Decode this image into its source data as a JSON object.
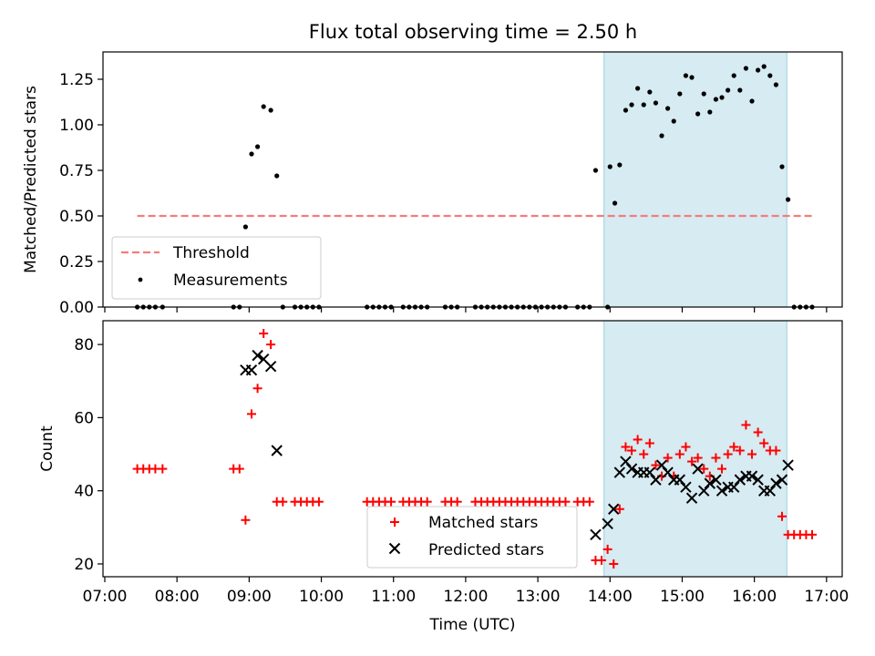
{
  "title": "Flux total observing time = 2.50 h",
  "chart_data": [
    {
      "type": "scatter",
      "panel": "top",
      "ylabel": "Matched/Predicted stars",
      "ylim": [
        0,
        1.4
      ],
      "yticks": [
        "0.00",
        "0.25",
        "0.50",
        "0.75",
        "1.00",
        "1.25"
      ],
      "xlim": [
        "07:00",
        "17:00"
      ],
      "shaded_range": [
        "13:55",
        "16:27"
      ],
      "threshold": {
        "name": "Threshold",
        "value": 0.5,
        "x": [
          "07:27",
          "16:48"
        ],
        "color": "#f47c7c"
      },
      "series": [
        {
          "name": "Measurements",
          "color": "#000000",
          "points": [
            [
              "07:27",
              0
            ],
            [
              "07:32",
              0
            ],
            [
              "07:37",
              0
            ],
            [
              "07:42",
              0
            ],
            [
              "07:48",
              0
            ],
            [
              "08:47",
              0
            ],
            [
              "08:52",
              0
            ],
            [
              "08:57",
              0.44
            ],
            [
              "09:02",
              0.84
            ],
            [
              "09:07",
              0.88
            ],
            [
              "09:12",
              1.1
            ],
            [
              "09:18",
              1.08
            ],
            [
              "09:23",
              0.72
            ],
            [
              "09:28",
              0
            ],
            [
              "09:38",
              0
            ],
            [
              "09:43",
              0
            ],
            [
              "09:48",
              0
            ],
            [
              "09:53",
              0
            ],
            [
              "09:58",
              0
            ],
            [
              "10:38",
              0
            ],
            [
              "10:43",
              0
            ],
            [
              "10:48",
              0
            ],
            [
              "10:53",
              0
            ],
            [
              "10:58",
              0
            ],
            [
              "11:08",
              0
            ],
            [
              "11:13",
              0
            ],
            [
              "11:18",
              0
            ],
            [
              "11:23",
              0
            ],
            [
              "11:28",
              0
            ],
            [
              "11:43",
              0
            ],
            [
              "11:48",
              0
            ],
            [
              "11:53",
              0
            ],
            [
              "12:08",
              0
            ],
            [
              "12:13",
              0
            ],
            [
              "12:18",
              0
            ],
            [
              "12:23",
              0
            ],
            [
              "12:28",
              0
            ],
            [
              "12:33",
              0
            ],
            [
              "12:38",
              0
            ],
            [
              "12:43",
              0
            ],
            [
              "12:48",
              0
            ],
            [
              "12:53",
              0
            ],
            [
              "12:58",
              0
            ],
            [
              "13:03",
              0
            ],
            [
              "13:08",
              0
            ],
            [
              "13:13",
              0
            ],
            [
              "13:18",
              0
            ],
            [
              "13:23",
              0
            ],
            [
              "13:33",
              0
            ],
            [
              "13:38",
              0
            ],
            [
              "13:43",
              0
            ],
            [
              "13:48",
              0.75
            ],
            [
              "13:58",
              0
            ],
            [
              "14:00",
              0.77
            ],
            [
              "14:04",
              0.57
            ],
            [
              "14:08",
              0.78
            ],
            [
              "14:13",
              1.08
            ],
            [
              "14:18",
              1.11
            ],
            [
              "14:23",
              1.2
            ],
            [
              "14:28",
              1.11
            ],
            [
              "14:33",
              1.18
            ],
            [
              "14:38",
              1.12
            ],
            [
              "14:43",
              0.94
            ],
            [
              "14:48",
              1.09
            ],
            [
              "14:53",
              1.02
            ],
            [
              "14:58",
              1.17
            ],
            [
              "15:03",
              1.27
            ],
            [
              "15:08",
              1.26
            ],
            [
              "15:13",
              1.06
            ],
            [
              "15:18",
              1.17
            ],
            [
              "15:23",
              1.07
            ],
            [
              "15:28",
              1.14
            ],
            [
              "15:33",
              1.15
            ],
            [
              "15:38",
              1.19
            ],
            [
              "15:43",
              1.27
            ],
            [
              "15:48",
              1.19
            ],
            [
              "15:53",
              1.31
            ],
            [
              "15:58",
              1.13
            ],
            [
              "16:03",
              1.3
            ],
            [
              "16:08",
              1.32
            ],
            [
              "16:13",
              1.27
            ],
            [
              "16:18",
              1.22
            ],
            [
              "16:23",
              0.77
            ],
            [
              "16:28",
              0.59
            ],
            [
              "16:33",
              0
            ],
            [
              "16:38",
              0
            ],
            [
              "16:43",
              0
            ],
            [
              "16:48",
              0
            ]
          ]
        }
      ],
      "legend": "lower-left"
    },
    {
      "type": "scatter",
      "panel": "bottom",
      "ylabel": "Count",
      "xlabel": "Time (UTC)",
      "ylim": [
        16.5,
        86.5
      ],
      "yticks": [
        "20",
        "40",
        "60",
        "80"
      ],
      "xlim": [
        "07:00",
        "17:00"
      ],
      "xticks": [
        "07:00",
        "08:00",
        "09:00",
        "10:00",
        "11:00",
        "12:00",
        "13:00",
        "14:00",
        "15:00",
        "16:00",
        "17:00"
      ],
      "shaded_range": [
        "13:55",
        "16:27"
      ],
      "series": [
        {
          "name": "Matched stars",
          "marker": "plus",
          "color": "#ff0000",
          "points": [
            [
              "07:27",
              46
            ],
            [
              "07:32",
              46
            ],
            [
              "07:37",
              46
            ],
            [
              "07:42",
              46
            ],
            [
              "07:48",
              46
            ],
            [
              "08:47",
              46
            ],
            [
              "08:52",
              46
            ],
            [
              "08:57",
              32
            ],
            [
              "09:02",
              61
            ],
            [
              "09:07",
              68
            ],
            [
              "09:12",
              83
            ],
            [
              "09:18",
              80
            ],
            [
              "09:23",
              37
            ],
            [
              "09:28",
              37
            ],
            [
              "09:38",
              37
            ],
            [
              "09:43",
              37
            ],
            [
              "09:48",
              37
            ],
            [
              "09:53",
              37
            ],
            [
              "09:58",
              37
            ],
            [
              "10:38",
              37
            ],
            [
              "10:43",
              37
            ],
            [
              "10:48",
              37
            ],
            [
              "10:53",
              37
            ],
            [
              "10:58",
              37
            ],
            [
              "11:08",
              37
            ],
            [
              "11:13",
              37
            ],
            [
              "11:18",
              37
            ],
            [
              "11:23",
              37
            ],
            [
              "11:28",
              37
            ],
            [
              "11:43",
              37
            ],
            [
              "11:48",
              37
            ],
            [
              "11:53",
              37
            ],
            [
              "12:08",
              37
            ],
            [
              "12:13",
              37
            ],
            [
              "12:18",
              37
            ],
            [
              "12:23",
              37
            ],
            [
              "12:28",
              37
            ],
            [
              "12:33",
              37
            ],
            [
              "12:38",
              37
            ],
            [
              "12:43",
              37
            ],
            [
              "12:48",
              37
            ],
            [
              "12:53",
              37
            ],
            [
              "12:58",
              37
            ],
            [
              "13:03",
              37
            ],
            [
              "13:08",
              37
            ],
            [
              "13:13",
              37
            ],
            [
              "13:18",
              37
            ],
            [
              "13:23",
              37
            ],
            [
              "13:33",
              37
            ],
            [
              "13:38",
              37
            ],
            [
              "13:43",
              37
            ],
            [
              "13:48",
              21
            ],
            [
              "13:53",
              21
            ],
            [
              "13:58",
              24
            ],
            [
              "14:03",
              20
            ],
            [
              "14:08",
              35
            ],
            [
              "14:13",
              52
            ],
            [
              "14:18",
              51
            ],
            [
              "14:23",
              54
            ],
            [
              "14:28",
              50
            ],
            [
              "14:33",
              53
            ],
            [
              "14:38",
              47
            ],
            [
              "14:43",
              44
            ],
            [
              "14:48",
              49
            ],
            [
              "14:53",
              44
            ],
            [
              "14:58",
              50
            ],
            [
              "15:03",
              52
            ],
            [
              "15:08",
              48
            ],
            [
              "15:13",
              49
            ],
            [
              "15:18",
              46
            ],
            [
              "15:23",
              44
            ],
            [
              "15:28",
              49
            ],
            [
              "15:33",
              46
            ],
            [
              "15:38",
              50
            ],
            [
              "15:43",
              52
            ],
            [
              "15:48",
              51
            ],
            [
              "15:53",
              58
            ],
            [
              "15:58",
              50
            ],
            [
              "16:03",
              56
            ],
            [
              "16:08",
              53
            ],
            [
              "16:13",
              51
            ],
            [
              "16:18",
              51
            ],
            [
              "16:23",
              33
            ],
            [
              "16:28",
              28
            ],
            [
              "16:33",
              28
            ],
            [
              "16:38",
              28
            ],
            [
              "16:43",
              28
            ],
            [
              "16:48",
              28
            ]
          ]
        },
        {
          "name": "Predicted stars",
          "marker": "x",
          "color": "#000000",
          "points": [
            [
              "08:57",
              73
            ],
            [
              "09:02",
              73
            ],
            [
              "09:07",
              77
            ],
            [
              "09:12",
              76
            ],
            [
              "09:18",
              74
            ],
            [
              "09:23",
              51
            ],
            [
              "13:48",
              28
            ],
            [
              "13:58",
              31
            ],
            [
              "14:03",
              35
            ],
            [
              "14:08",
              45
            ],
            [
              "14:13",
              48
            ],
            [
              "14:18",
              46
            ],
            [
              "14:23",
              45
            ],
            [
              "14:28",
              45
            ],
            [
              "14:33",
              45
            ],
            [
              "14:38",
              43
            ],
            [
              "14:43",
              47
            ],
            [
              "14:48",
              45
            ],
            [
              "14:53",
              43
            ],
            [
              "14:58",
              43
            ],
            [
              "15:03",
              41
            ],
            [
              "15:08",
              38
            ],
            [
              "15:13",
              46
            ],
            [
              "15:18",
              40
            ],
            [
              "15:23",
              42
            ],
            [
              "15:28",
              43
            ],
            [
              "15:33",
              40
            ],
            [
              "15:38",
              41
            ],
            [
              "15:43",
              41
            ],
            [
              "15:48",
              43
            ],
            [
              "15:53",
              44
            ],
            [
              "15:58",
              44
            ],
            [
              "16:03",
              43
            ],
            [
              "16:08",
              40
            ],
            [
              "16:13",
              40
            ],
            [
              "16:18",
              42
            ],
            [
              "16:23",
              43
            ],
            [
              "16:28",
              47
            ]
          ]
        }
      ],
      "legend": "lower-center"
    }
  ]
}
